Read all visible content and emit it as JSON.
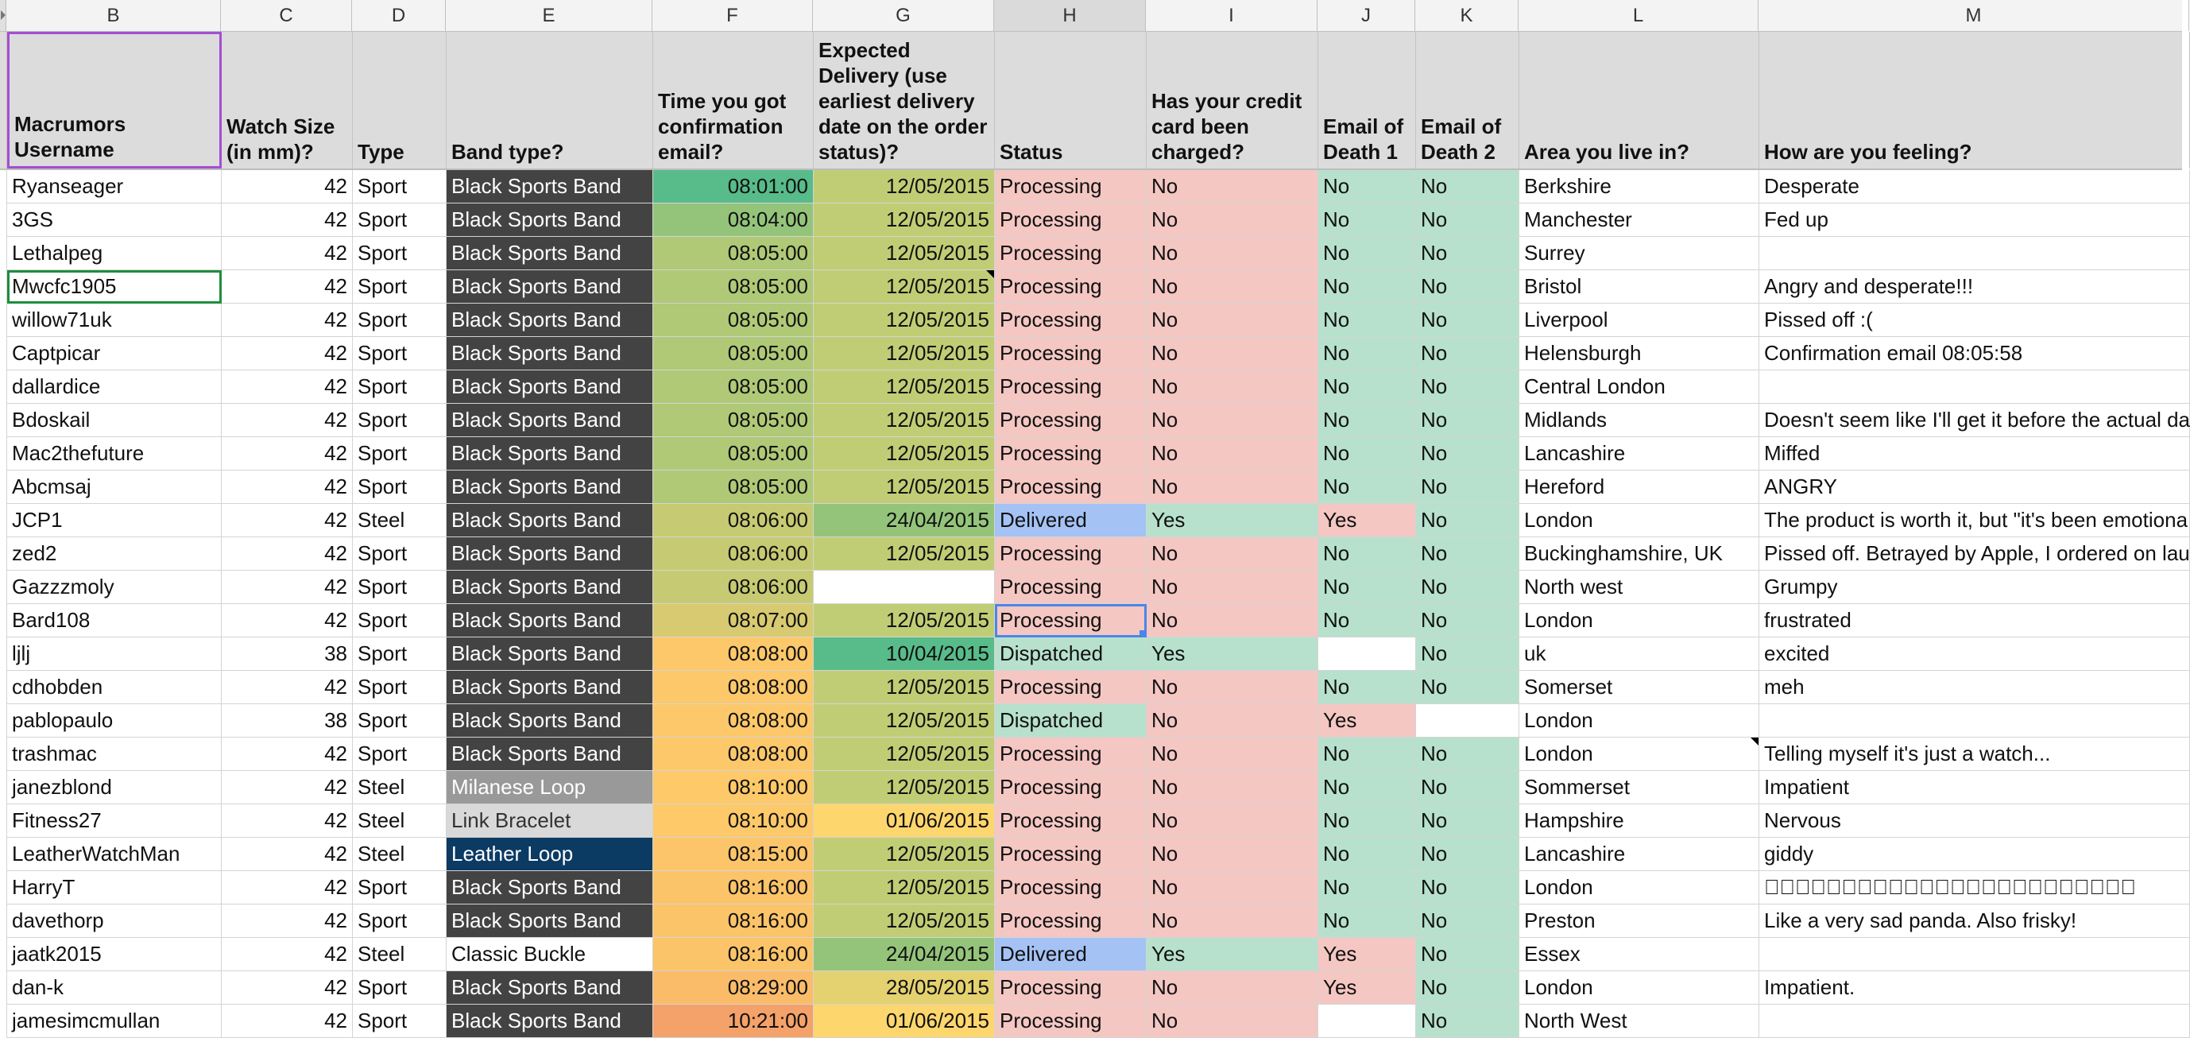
{
  "column_letters": [
    "B",
    "C",
    "D",
    "E",
    "F",
    "G",
    "H",
    "I",
    "J",
    "K",
    "L",
    "M"
  ],
  "selected_column_letter": "H",
  "headers": [
    "Macrumors Username",
    "Watch Size (in mm)?",
    "Type",
    "Band type?",
    "Time you got confirmation email?",
    "Expected Delivery (use earliest delivery date on the order status)?",
    "Status",
    "Has your credit card been charged?",
    "Email of Death 1",
    "Email of Death 2",
    "Area you live in?",
    "How are you feeling?"
  ],
  "colors": {
    "band_black_bg": "#434343",
    "band_black_fg": "#ffffff",
    "band_milanese_bg": "#999999",
    "band_milanese_fg": "#ffffff",
    "band_link_bg": "#d9d9d9",
    "band_link_fg": "#333333",
    "band_leather_bg": "#0b3a63",
    "band_leather_fg": "#ffffff",
    "band_classic_bg": "#ffffff",
    "band_classic_fg": "#111111",
    "status_processing": "#f4c7c3",
    "status_delivered": "#a4c2f4",
    "status_dispatched": "#b7e1cd",
    "yes_no_green": "#b7e1cd",
    "yes_no_red": "#f4c7c3",
    "selected_header_border": "#a64dd2",
    "selection_green": "#1e8e3e",
    "selection_blue": "#4a86e8"
  },
  "rows": [
    {
      "username": "Ryanseager",
      "size": "42",
      "type": "Sport",
      "band": "Black Sports Band",
      "time": "08:01:00",
      "delivery": "12/05/2015",
      "status": "Processing",
      "charged": "No",
      "death1": "No",
      "death2": "No",
      "area": "Berkshire",
      "feeling": "Desperate",
      "time_bg": "#57bb8a",
      "delivery_bg": "#c1cd75"
    },
    {
      "username": "3GS",
      "size": "42",
      "type": "Sport",
      "band": "Black Sports Band",
      "time": "08:04:00",
      "delivery": "12/05/2015",
      "status": "Processing",
      "charged": "No",
      "death1": "No",
      "death2": "No",
      "area": "Manchester",
      "feeling": "Fed up",
      "time_bg": "#94c47a",
      "delivery_bg": "#c1cd75"
    },
    {
      "username": "Lethalpeg",
      "size": "42",
      "type": "Sport",
      "band": "Black Sports Band",
      "time": "08:05:00",
      "delivery": "12/05/2015",
      "status": "Processing",
      "charged": "No",
      "death1": "No",
      "death2": "No",
      "area": "Surrey",
      "feeling": "",
      "time_bg": "#b0c977",
      "delivery_bg": "#c1cd75"
    },
    {
      "username": "Mwcfc1905",
      "size": "42",
      "type": "Sport",
      "band": "Black Sports Band",
      "time": "08:05:00",
      "delivery": "12/05/2015",
      "status": "Processing",
      "charged": "No",
      "death1": "No",
      "death2": "No",
      "area": "Bristol",
      "feeling": "Angry and desperate!!!",
      "time_bg": "#b0c977",
      "delivery_bg": "#c1cd75"
    },
    {
      "username": "willow71uk",
      "size": "42",
      "type": "Sport",
      "band": "Black Sports Band",
      "time": "08:05:00",
      "delivery": "12/05/2015",
      "status": "Processing",
      "charged": "No",
      "death1": "No",
      "death2": "No",
      "area": "Liverpool",
      "feeling": "Pissed off :(",
      "time_bg": "#b0c977",
      "delivery_bg": "#c1cd75"
    },
    {
      "username": "Captpicar",
      "size": "42",
      "type": "Sport",
      "band": "Black Sports Band",
      "time": "08:05:00",
      "delivery": "12/05/2015",
      "status": "Processing",
      "charged": "No",
      "death1": "No",
      "death2": "No",
      "area": "Helensburgh",
      "feeling": "Confirmation email 08:05:58",
      "time_bg": "#b0c977",
      "delivery_bg": "#c1cd75"
    },
    {
      "username": "dallardice",
      "size": "42",
      "type": "Sport",
      "band": "Black Sports Band",
      "time": "08:05:00",
      "delivery": "12/05/2015",
      "status": "Processing",
      "charged": "No",
      "death1": "No",
      "death2": "No",
      "area": "Central London",
      "feeling": "",
      "time_bg": "#b0c977",
      "delivery_bg": "#c1cd75"
    },
    {
      "username": "Bdoskail",
      "size": "42",
      "type": "Sport",
      "band": "Black Sports Band",
      "time": "08:05:00",
      "delivery": "12/05/2015",
      "status": "Processing",
      "charged": "No",
      "death1": "No",
      "death2": "No",
      "area": "Midlands",
      "feeling": "Doesn't seem like I'll get it before the actual da",
      "time_bg": "#b0c977",
      "delivery_bg": "#c1cd75"
    },
    {
      "username": "Mac2thefuture",
      "size": "42",
      "type": "Sport",
      "band": "Black Sports Band",
      "time": "08:05:00",
      "delivery": "12/05/2015",
      "status": "Processing",
      "charged": "No",
      "death1": "No",
      "death2": "No",
      "area": "Lancashire",
      "feeling": "Miffed",
      "time_bg": "#b0c977",
      "delivery_bg": "#c1cd75"
    },
    {
      "username": "Abcmsaj",
      "size": "42",
      "type": "Sport",
      "band": "Black Sports Band",
      "time": "08:05:00",
      "delivery": "12/05/2015",
      "status": "Processing",
      "charged": "No",
      "death1": "No",
      "death2": "No",
      "area": "Hereford",
      "feeling": "ANGRY",
      "time_bg": "#b0c977",
      "delivery_bg": "#c1cd75"
    },
    {
      "username": "JCP1",
      "size": "42",
      "type": "Steel",
      "band": "Black Sports Band",
      "time": "08:06:00",
      "delivery": "24/04/2015",
      "status": "Delivered",
      "charged": "Yes",
      "death1": "Yes",
      "death2": "No",
      "area": "London",
      "feeling": "The product is worth it, but \"it's been emotiona",
      "time_bg": "#c6cb73",
      "delivery_bg": "#94c47a"
    },
    {
      "username": "zed2",
      "size": "42",
      "type": "Sport",
      "band": "Black Sports Band",
      "time": "08:06:00",
      "delivery": "12/05/2015",
      "status": "Processing",
      "charged": "No",
      "death1": "No",
      "death2": "No",
      "area": "Buckinghamshire, UK",
      "feeling": "Pissed off. Betrayed by Apple, I ordered on lau",
      "time_bg": "#c6cb73",
      "delivery_bg": "#c1cd75"
    },
    {
      "username": "Gazzzmoly",
      "size": "42",
      "type": "Sport",
      "band": "Black Sports Band",
      "time": "08:06:00",
      "delivery": "",
      "status": "Processing",
      "charged": "No",
      "death1": "No",
      "death2": "No",
      "area": "North west",
      "feeling": "Grumpy",
      "time_bg": "#c6cb73",
      "delivery_bg": "#ffffff"
    },
    {
      "username": "Bard108",
      "size": "42",
      "type": "Sport",
      "band": "Black Sports Band",
      "time": "08:07:00",
      "delivery": "12/05/2015",
      "status": "Processing",
      "charged": "No",
      "death1": "No",
      "death2": "No",
      "area": "London",
      "feeling": "frustrated",
      "time_bg": "#d7ca70",
      "delivery_bg": "#c1cd75"
    },
    {
      "username": "ljlj",
      "size": "38",
      "type": "Sport",
      "band": "Black Sports Band",
      "time": "08:08:00",
      "delivery": "10/04/2015",
      "status": "Dispatched",
      "charged": "Yes",
      "death1": "",
      "death2": "No",
      "area": "uk",
      "feeling": "excited",
      "time_bg": "#fcc86a",
      "delivery_bg": "#57bb8a"
    },
    {
      "username": "cdhobden",
      "size": "42",
      "type": "Sport",
      "band": "Black Sports Band",
      "time": "08:08:00",
      "delivery": "12/05/2015",
      "status": "Processing",
      "charged": "No",
      "death1": "No",
      "death2": "No",
      "area": "Somerset",
      "feeling": "meh",
      "time_bg": "#fcc86a",
      "delivery_bg": "#c1cd75"
    },
    {
      "username": "pablopaulo",
      "size": "38",
      "type": "Sport",
      "band": "Black Sports Band",
      "time": "08:08:00",
      "delivery": "12/05/2015",
      "status": "Dispatched",
      "charged": "No",
      "death1": "Yes",
      "death2": "",
      "area": "London",
      "feeling": "",
      "time_bg": "#fcc86a",
      "delivery_bg": "#c1cd75"
    },
    {
      "username": "trashmac",
      "size": "42",
      "type": "Sport",
      "band": "Black Sports Band",
      "time": "08:08:00",
      "delivery": "12/05/2015",
      "status": "Processing",
      "charged": "No",
      "death1": "No",
      "death2": "No",
      "area": "London",
      "feeling": "Telling myself it's just a watch...",
      "time_bg": "#fcc86a",
      "delivery_bg": "#c1cd75"
    },
    {
      "username": "janezblond",
      "size": "42",
      "type": "Steel",
      "band": "Milanese Loop",
      "time": "08:10:00",
      "delivery": "12/05/2015",
      "status": "Processing",
      "charged": "No",
      "death1": "No",
      "death2": "No",
      "area": "Sommerset",
      "feeling": "Impatient",
      "time_bg": "#fdc969",
      "delivery_bg": "#c1cd75"
    },
    {
      "username": "Fitness27",
      "size": "42",
      "type": "Steel",
      "band": "Link Bracelet",
      "time": "08:10:00",
      "delivery": "01/06/2015",
      "status": "Processing",
      "charged": "No",
      "death1": "No",
      "death2": "No",
      "area": "Hampshire",
      "feeling": "Nervous",
      "time_bg": "#fdc969",
      "delivery_bg": "#fdd66e"
    },
    {
      "username": "LeatherWatchMan",
      "size": "42",
      "type": "Steel",
      "band": "Leather Loop",
      "time": "08:15:00",
      "delivery": "12/05/2015",
      "status": "Processing",
      "charged": "No",
      "death1": "No",
      "death2": "No",
      "area": "Lancashire",
      "feeling": "giddy",
      "time_bg": "#fcc569",
      "delivery_bg": "#c1cd75"
    },
    {
      "username": "HarryT",
      "size": "42",
      "type": "Sport",
      "band": "Black Sports Band",
      "time": "08:16:00",
      "delivery": "12/05/2015",
      "status": "Processing",
      "charged": "No",
      "death1": "No",
      "death2": "No",
      "area": "London",
      "feeling": "",
      "time_bg": "#fcc469",
      "delivery_bg": "#c1cd75"
    },
    {
      "username": "davethorp",
      "size": "42",
      "type": "Sport",
      "band": "Black Sports Band",
      "time": "08:16:00",
      "delivery": "12/05/2015",
      "status": "Processing",
      "charged": "No",
      "death1": "No",
      "death2": "No",
      "area": "Preston",
      "feeling": "Like a very sad panda. Also frisky!",
      "time_bg": "#fcc469",
      "delivery_bg": "#c1cd75"
    },
    {
      "username": "jaatk2015",
      "size": "42",
      "type": "Steel",
      "band": "Classic Buckle",
      "time": "08:16:00",
      "delivery": "24/04/2015",
      "status": "Delivered",
      "charged": "Yes",
      "death1": "Yes",
      "death2": "No",
      "area": "Essex",
      "feeling": "",
      "time_bg": "#fcc469",
      "delivery_bg": "#94c47a"
    },
    {
      "username": "dan-k",
      "size": "42",
      "type": "Sport",
      "band": "Black Sports Band",
      "time": "08:29:00",
      "delivery": "28/05/2015",
      "status": "Processing",
      "charged": "No",
      "death1": "Yes",
      "death2": "No",
      "area": "London",
      "feeling": "Impatient.",
      "time_bg": "#fbbc6a",
      "delivery_bg": "#e4d16f"
    },
    {
      "username": "jamesimcmullan",
      "size": "42",
      "type": "Sport",
      "band": "Black Sports Band",
      "time": "10:21:00",
      "delivery": "01/06/2015",
      "status": "Processing",
      "charged": "No",
      "death1": "",
      "death2": "No",
      "area": "North West",
      "feeling": "",
      "time_bg": "#f4a26a",
      "delivery_bg": "#fdd66e"
    }
  ]
}
